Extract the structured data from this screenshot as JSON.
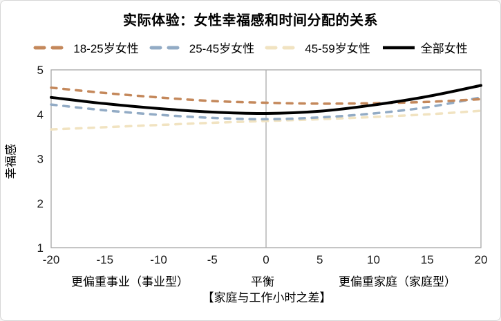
{
  "window": {
    "background": "#ffffff",
    "border_color": "#d6d6d6"
  },
  "chart_data": {
    "type": "line",
    "title": "实际体验：女性幸福感和时间分配的关系",
    "ylabel": "幸福感",
    "xlabel": "【家庭与工作小时之差】",
    "xlim": [
      -20,
      20
    ],
    "ylim": [
      1,
      5
    ],
    "x_ticks": [
      -20,
      -15,
      -10,
      -5,
      0,
      5,
      10,
      15,
      20
    ],
    "y_ticks": [
      1,
      2,
      3,
      4,
      5
    ],
    "x_gridline_at": 0,
    "grid": "single vertical line at x=0, boxed plot area",
    "legend_position": "top",
    "axis_color": "#a6a6a6",
    "gridline_color": "#ababab",
    "x_zone_labels": [
      {
        "text": "更偏重事业（事业型）",
        "x": -12.7
      },
      {
        "text": "平衡",
        "x": -0.3
      },
      {
        "text": "更偏重家庭（家庭型）",
        "x": 12.2
      }
    ],
    "x": [
      -20,
      -15,
      -10,
      -5,
      0,
      5,
      10,
      15,
      20
    ],
    "series": [
      {
        "name": "18-25岁女性",
        "color": "#C4885B",
        "style": "dashed",
        "width": 3.5,
        "values": [
          4.6,
          4.48,
          4.38,
          4.3,
          4.26,
          4.24,
          4.25,
          4.28,
          4.34
        ]
      },
      {
        "name": "25-45岁女性",
        "color": "#92ABC5",
        "style": "dashed",
        "width": 3.5,
        "values": [
          4.22,
          4.09,
          3.99,
          3.92,
          3.89,
          3.93,
          4.02,
          4.16,
          4.38
        ]
      },
      {
        "name": "45-59岁女性",
        "color": "#F1E3C1",
        "style": "dashed",
        "width": 3.5,
        "values": [
          3.66,
          3.71,
          3.76,
          3.81,
          3.85,
          3.89,
          3.94,
          4.0,
          4.08
        ]
      },
      {
        "name": "全部女性",
        "color": "#000000",
        "style": "solid",
        "width": 4,
        "values": [
          4.38,
          4.24,
          4.13,
          4.05,
          4.02,
          4.07,
          4.21,
          4.4,
          4.65
        ]
      }
    ]
  }
}
